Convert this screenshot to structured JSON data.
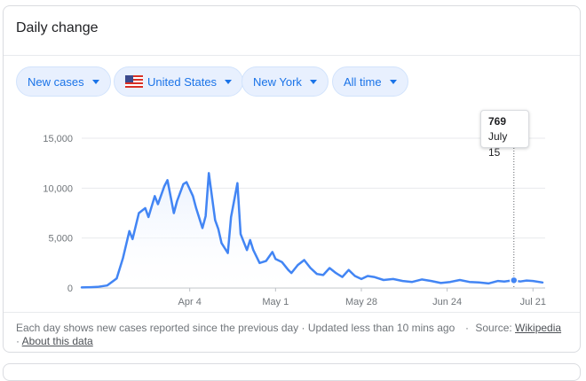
{
  "card": {
    "title": "Daily change"
  },
  "filters": {
    "metric": "New cases",
    "country": "United States",
    "country_flag_icon": "us-flag-icon",
    "region": "New York",
    "period": "All time"
  },
  "tooltip": {
    "value": "769",
    "date": "July 15"
  },
  "footer": {
    "note": "Each day shows new cases reported since the previous day · Updated less than 10 mins ago",
    "source_label": "Source:",
    "source_link": "Wikipedia",
    "about_link": "About this data"
  },
  "colors": {
    "accent": "#1a73e8",
    "line": "#4285f4",
    "chip_bg": "#e8f0fe"
  },
  "chart_data": {
    "type": "area",
    "title": "",
    "xlabel": "",
    "ylabel": "",
    "ylim": [
      0,
      15000
    ],
    "yticks": [
      "15,000",
      "10,000",
      "5,000",
      "0"
    ],
    "xticks": [
      "Apr 4",
      "May 1",
      "May 28",
      "Jun 24",
      "Jul 21"
    ],
    "grid": true,
    "series": [
      {
        "x": [
          "2020-03-01",
          "2020-03-04",
          "2020-03-06",
          "2020-03-09",
          "2020-03-12",
          "2020-03-14",
          "2020-03-16",
          "2020-03-17",
          "2020-03-19",
          "2020-03-21",
          "2020-03-22",
          "2020-03-24",
          "2020-03-25",
          "2020-03-27",
          "2020-03-28",
          "2020-03-30",
          "2020-03-31",
          "2020-04-02",
          "2020-04-03",
          "2020-04-05",
          "2020-04-06",
          "2020-04-08",
          "2020-04-09",
          "2020-04-10",
          "2020-04-12",
          "2020-04-13",
          "2020-04-14",
          "2020-04-16",
          "2020-04-17",
          "2020-04-19",
          "2020-04-20",
          "2020-04-22",
          "2020-04-23",
          "2020-04-24",
          "2020-04-26",
          "2020-04-28",
          "2020-04-30",
          "2020-05-01",
          "2020-05-03",
          "2020-05-05",
          "2020-05-06",
          "2020-05-08",
          "2020-05-10",
          "2020-05-12",
          "2020-05-14",
          "2020-05-16",
          "2020-05-18",
          "2020-05-20",
          "2020-05-22",
          "2020-05-24",
          "2020-05-26",
          "2020-05-28",
          "2020-05-30",
          "2020-06-01",
          "2020-06-04",
          "2020-06-07",
          "2020-06-10",
          "2020-06-13",
          "2020-06-16",
          "2020-06-19",
          "2020-06-22",
          "2020-06-25",
          "2020-06-28",
          "2020-07-01",
          "2020-07-04",
          "2020-07-07",
          "2020-07-10",
          "2020-07-12",
          "2020-07-15",
          "2020-07-17",
          "2020-07-19",
          "2020-07-21",
          "2020-07-24"
        ],
        "values": [
          50,
          80,
          110,
          250,
          950,
          3000,
          5700,
          4900,
          7500,
          8000,
          7100,
          9200,
          8400,
          10200,
          10800,
          7500,
          8700,
          10400,
          10600,
          9200,
          8000,
          6000,
          7200,
          11500,
          6800,
          5900,
          4500,
          3500,
          7100,
          10500,
          5400,
          3800,
          4800,
          3800,
          2500,
          2700,
          3600,
          2900,
          2600,
          1800,
          1500,
          2300,
          2800,
          2000,
          1400,
          1300,
          2000,
          1500,
          1100,
          1800,
          1200,
          900,
          1200,
          1100,
          800,
          900,
          700,
          600,
          850,
          700,
          500,
          600,
          800,
          600,
          550,
          450,
          700,
          650,
          769,
          650,
          750,
          700,
          550
        ]
      }
    ]
  }
}
